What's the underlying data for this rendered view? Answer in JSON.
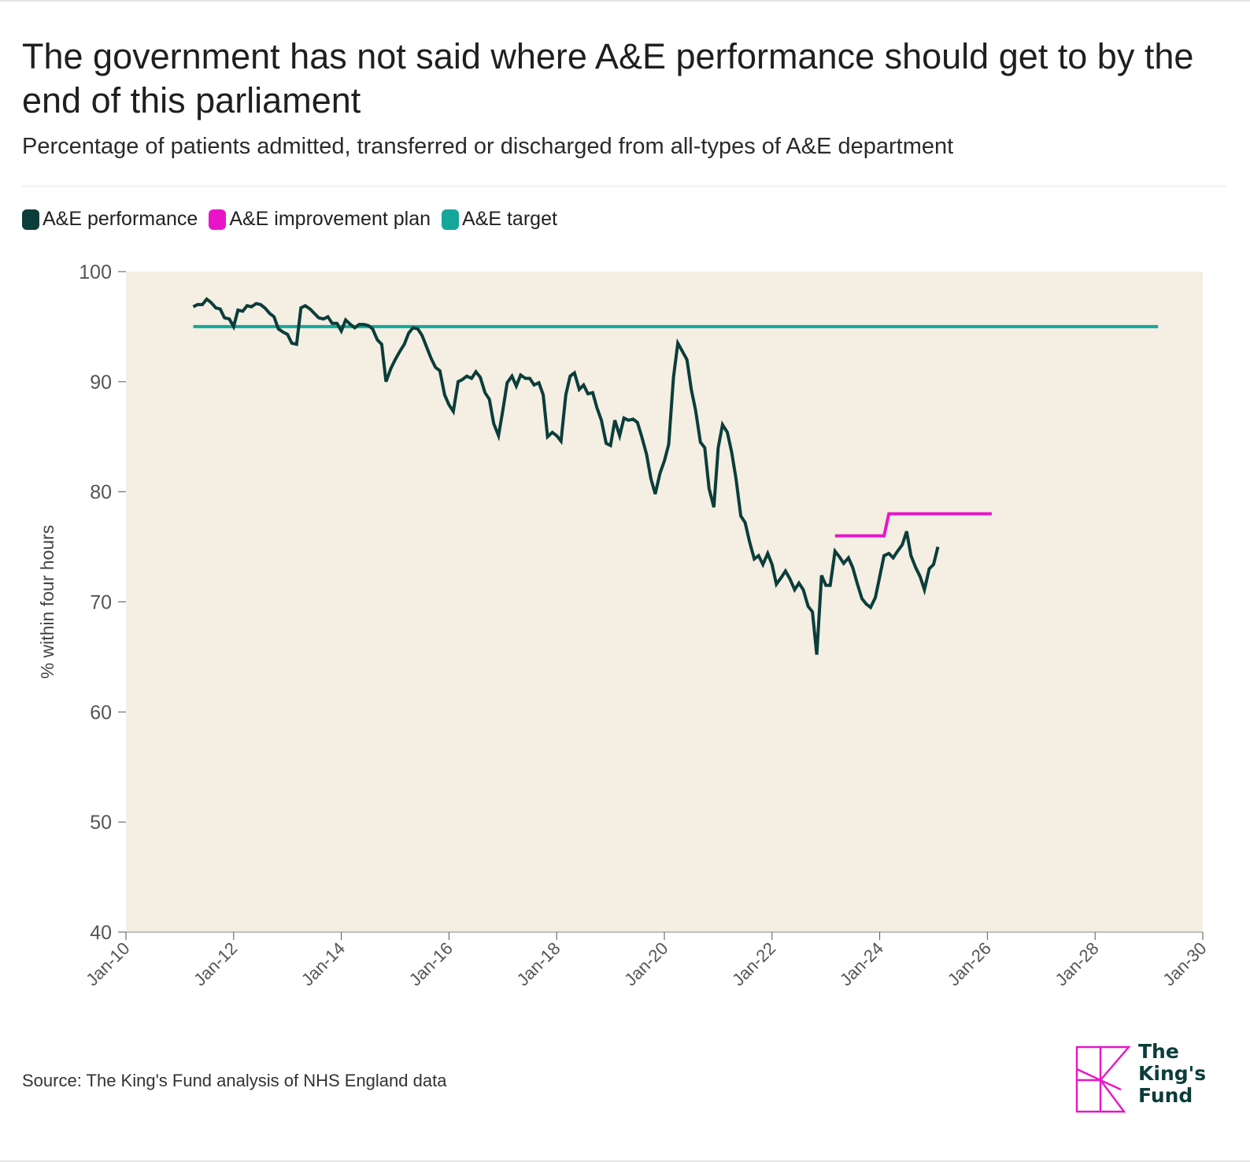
{
  "title": "The government has not said where A&E performance should get to by the end of this parliament",
  "subtitle": "Percentage of patients admitted, transferred or discharged from all-types of A&E department",
  "legend": [
    {
      "label": "A&E performance",
      "color": "#0b3d3a"
    },
    {
      "label": "A&E improvement plan",
      "color": "#e815c8"
    },
    {
      "label": "A&E target",
      "color": "#14a79a"
    }
  ],
  "source": "Source: The King's Fund analysis of NHS England data",
  "logo": {
    "text": "The\nKing's\nFund"
  },
  "colors": {
    "plot_bg": "#f4eee3",
    "performance": "#0b3d3a",
    "improvement": "#e815c8",
    "target": "#14a79a",
    "axis_text": "#555555"
  },
  "chart_data": {
    "type": "line",
    "title": "The government has not said where A&E performance should get to by the end of this parliament",
    "ylabel": "% within four hours",
    "xlabel": "",
    "ylim": [
      40,
      100
    ],
    "yticks": [
      40,
      50,
      60,
      70,
      80,
      90,
      100
    ],
    "xlim": [
      2010,
      2030
    ],
    "xticks": [
      {
        "value": 2010,
        "label": "Jan-10"
      },
      {
        "value": 2012,
        "label": "Jan-12"
      },
      {
        "value": 2014,
        "label": "Jan-14"
      },
      {
        "value": 2016,
        "label": "Jan-16"
      },
      {
        "value": 2018,
        "label": "Jan-18"
      },
      {
        "value": 2020,
        "label": "Jan-20"
      },
      {
        "value": 2022,
        "label": "Jan-22"
      },
      {
        "value": 2024,
        "label": "Jan-24"
      },
      {
        "value": 2026,
        "label": "Jan-26"
      },
      {
        "value": 2028,
        "label": "Jan-28"
      },
      {
        "value": 2030,
        "label": "Jan-30"
      }
    ],
    "series": [
      {
        "name": "A&E performance",
        "color": "#0b3d3a",
        "points": [
          [
            2011.25,
            96.8
          ],
          [
            2011.33,
            97.0
          ],
          [
            2011.42,
            97.0
          ],
          [
            2011.5,
            97.5
          ],
          [
            2011.58,
            97.2
          ],
          [
            2011.67,
            96.7
          ],
          [
            2011.75,
            96.6
          ],
          [
            2011.83,
            95.8
          ],
          [
            2011.92,
            95.7
          ],
          [
            2012.0,
            95.0
          ],
          [
            2012.08,
            96.5
          ],
          [
            2012.17,
            96.4
          ],
          [
            2012.25,
            96.9
          ],
          [
            2012.33,
            96.8
          ],
          [
            2012.42,
            97.1
          ],
          [
            2012.5,
            97.0
          ],
          [
            2012.58,
            96.7
          ],
          [
            2012.67,
            96.2
          ],
          [
            2012.75,
            95.9
          ],
          [
            2012.83,
            94.8
          ],
          [
            2012.92,
            94.5
          ],
          [
            2013.0,
            94.3
          ],
          [
            2013.08,
            93.5
          ],
          [
            2013.17,
            93.4
          ],
          [
            2013.25,
            96.7
          ],
          [
            2013.33,
            96.9
          ],
          [
            2013.42,
            96.6
          ],
          [
            2013.5,
            96.2
          ],
          [
            2013.58,
            95.8
          ],
          [
            2013.67,
            95.7
          ],
          [
            2013.75,
            95.9
          ],
          [
            2013.83,
            95.3
          ],
          [
            2013.92,
            95.3
          ],
          [
            2014.0,
            94.6
          ],
          [
            2014.08,
            95.6
          ],
          [
            2014.17,
            95.2
          ],
          [
            2014.25,
            94.9
          ],
          [
            2014.33,
            95.2
          ],
          [
            2014.42,
            95.2
          ],
          [
            2014.5,
            95.1
          ],
          [
            2014.58,
            94.8
          ],
          [
            2014.67,
            93.8
          ],
          [
            2014.75,
            93.4
          ],
          [
            2014.83,
            90.0
          ],
          [
            2014.92,
            91.2
          ],
          [
            2015.0,
            92.0
          ],
          [
            2015.08,
            92.7
          ],
          [
            2015.17,
            93.4
          ],
          [
            2015.25,
            94.4
          ],
          [
            2015.33,
            94.9
          ],
          [
            2015.42,
            94.8
          ],
          [
            2015.5,
            94.2
          ],
          [
            2015.58,
            93.2
          ],
          [
            2015.67,
            92.1
          ],
          [
            2015.75,
            91.3
          ],
          [
            2015.83,
            91.0
          ],
          [
            2015.92,
            88.8
          ],
          [
            2016.0,
            87.9
          ],
          [
            2016.08,
            87.3
          ],
          [
            2016.17,
            90.0
          ],
          [
            2016.25,
            90.2
          ],
          [
            2016.33,
            90.5
          ],
          [
            2016.42,
            90.3
          ],
          [
            2016.5,
            90.9
          ],
          [
            2016.58,
            90.4
          ],
          [
            2016.67,
            89.0
          ],
          [
            2016.75,
            88.4
          ],
          [
            2016.83,
            86.2
          ],
          [
            2016.92,
            85.1
          ],
          [
            2017.0,
            87.4
          ],
          [
            2017.08,
            89.9
          ],
          [
            2017.17,
            90.5
          ],
          [
            2017.25,
            89.6
          ],
          [
            2017.33,
            90.6
          ],
          [
            2017.42,
            90.3
          ],
          [
            2017.5,
            90.3
          ],
          [
            2017.58,
            89.7
          ],
          [
            2017.67,
            89.9
          ],
          [
            2017.75,
            88.8
          ],
          [
            2017.83,
            85.0
          ],
          [
            2017.92,
            85.4
          ],
          [
            2018.0,
            85.1
          ],
          [
            2018.08,
            84.6
          ],
          [
            2018.17,
            88.8
          ],
          [
            2018.25,
            90.5
          ],
          [
            2018.33,
            90.8
          ],
          [
            2018.42,
            89.3
          ],
          [
            2018.5,
            89.7
          ],
          [
            2018.58,
            88.9
          ],
          [
            2018.67,
            89.0
          ],
          [
            2018.75,
            87.6
          ],
          [
            2018.83,
            86.5
          ],
          [
            2018.92,
            84.4
          ],
          [
            2019.0,
            84.2
          ],
          [
            2019.08,
            86.5
          ],
          [
            2019.17,
            85.1
          ],
          [
            2019.25,
            86.7
          ],
          [
            2019.33,
            86.5
          ],
          [
            2019.42,
            86.6
          ],
          [
            2019.5,
            86.3
          ],
          [
            2019.58,
            85.0
          ],
          [
            2019.67,
            83.4
          ],
          [
            2019.75,
            81.2
          ],
          [
            2019.83,
            79.8
          ],
          [
            2019.92,
            81.7
          ],
          [
            2020.0,
            82.8
          ],
          [
            2020.08,
            84.3
          ],
          [
            2020.17,
            90.4
          ],
          [
            2020.25,
            93.5
          ],
          [
            2020.33,
            92.8
          ],
          [
            2020.42,
            92.0
          ],
          [
            2020.5,
            89.3
          ],
          [
            2020.58,
            87.4
          ],
          [
            2020.67,
            84.5
          ],
          [
            2020.75,
            84.0
          ],
          [
            2020.83,
            80.3
          ],
          [
            2020.92,
            78.6
          ],
          [
            2021.0,
            84.0
          ],
          [
            2021.08,
            86.1
          ],
          [
            2021.17,
            85.4
          ],
          [
            2021.25,
            83.6
          ],
          [
            2021.33,
            81.2
          ],
          [
            2021.42,
            77.8
          ],
          [
            2021.5,
            77.2
          ],
          [
            2021.58,
            75.5
          ],
          [
            2021.67,
            73.9
          ],
          [
            2021.75,
            74.2
          ],
          [
            2021.83,
            73.4
          ],
          [
            2021.92,
            74.4
          ],
          [
            2022.0,
            73.4
          ],
          [
            2022.08,
            71.6
          ],
          [
            2022.17,
            72.2
          ],
          [
            2022.25,
            72.8
          ],
          [
            2022.33,
            72.1
          ],
          [
            2022.42,
            71.1
          ],
          [
            2022.5,
            71.7
          ],
          [
            2022.58,
            71.1
          ],
          [
            2022.67,
            69.6
          ],
          [
            2022.75,
            69.1
          ],
          [
            2022.83,
            65.2
          ],
          [
            2022.92,
            72.4
          ],
          [
            2023.0,
            71.5
          ],
          [
            2023.08,
            71.5
          ],
          [
            2023.17,
            74.6
          ],
          [
            2023.25,
            74.1
          ],
          [
            2023.33,
            73.5
          ],
          [
            2023.42,
            74.0
          ],
          [
            2023.5,
            73.1
          ],
          [
            2023.58,
            71.7
          ],
          [
            2023.67,
            70.3
          ],
          [
            2023.75,
            69.8
          ],
          [
            2023.83,
            69.5
          ],
          [
            2023.92,
            70.4
          ],
          [
            2024.0,
            72.3
          ],
          [
            2024.08,
            74.2
          ],
          [
            2024.17,
            74.4
          ],
          [
            2024.25,
            74.0
          ],
          [
            2024.33,
            74.6
          ],
          [
            2024.42,
            75.2
          ],
          [
            2024.5,
            76.4
          ],
          [
            2024.58,
            74.2
          ],
          [
            2024.67,
            73.1
          ],
          [
            2024.75,
            72.3
          ],
          [
            2024.83,
            71.1
          ],
          [
            2024.92,
            73.0
          ],
          [
            2025.0,
            73.4
          ],
          [
            2025.08,
            75.0
          ]
        ]
      },
      {
        "name": "A&E improvement plan",
        "color": "#e815c8",
        "points": [
          [
            2023.17,
            76.0
          ],
          [
            2024.08,
            76.0
          ],
          [
            2024.17,
            78.0
          ],
          [
            2026.08,
            78.0
          ]
        ]
      },
      {
        "name": "A&E target",
        "color": "#14a79a",
        "points": [
          [
            2011.25,
            95.0
          ],
          [
            2029.17,
            95.0
          ]
        ]
      }
    ]
  }
}
